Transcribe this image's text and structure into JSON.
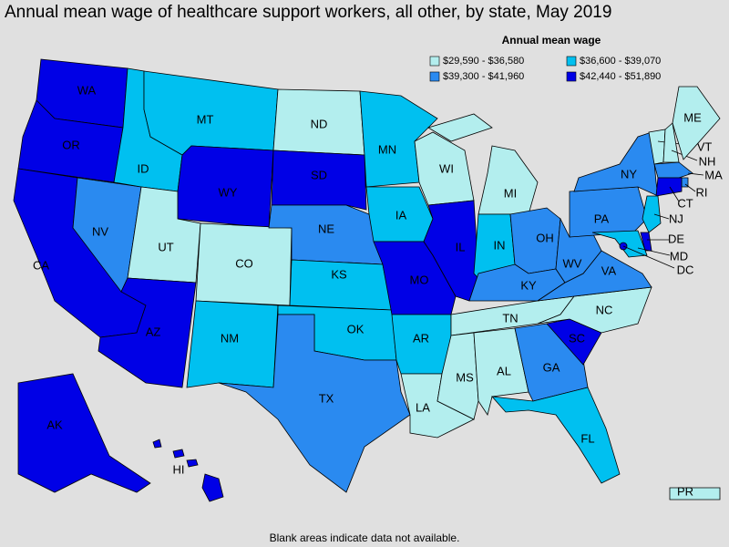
{
  "title": "Annual mean wage of healthcare support workers, all other, by state, May 2019",
  "legend": {
    "title": "Annual mean wage",
    "bins": [
      {
        "label": "$29,590 - $36,580",
        "color": "#b3eeee"
      },
      {
        "label": "$36,600 - $39,070",
        "color": "#00c0f0"
      },
      {
        "label": "$39,300 - $41,960",
        "color": "#2a8af0"
      },
      {
        "label": "$42,440 - $51,890",
        "color": "#0000e6"
      }
    ]
  },
  "states": [
    {
      "label": "WA",
      "bin": 3
    },
    {
      "label": "OR",
      "bin": 3
    },
    {
      "label": "CA",
      "bin": 3
    },
    {
      "label": "NV",
      "bin": 2
    },
    {
      "label": "ID",
      "bin": 1
    },
    {
      "label": "MT",
      "bin": 1
    },
    {
      "label": "WY",
      "bin": 3
    },
    {
      "label": "UT",
      "bin": 0
    },
    {
      "label": "CO",
      "bin": 0
    },
    {
      "label": "AZ",
      "bin": 3
    },
    {
      "label": "NM",
      "bin": 1
    },
    {
      "label": "ND",
      "bin": 0
    },
    {
      "label": "SD",
      "bin": 3
    },
    {
      "label": "NE",
      "bin": 2
    },
    {
      "label": "KS",
      "bin": 1
    },
    {
      "label": "OK",
      "bin": 1
    },
    {
      "label": "TX",
      "bin": 2
    },
    {
      "label": "MN",
      "bin": 1
    },
    {
      "label": "IA",
      "bin": 1
    },
    {
      "label": "MO",
      "bin": 3
    },
    {
      "label": "AR",
      "bin": 1
    },
    {
      "label": "LA",
      "bin": 0
    },
    {
      "label": "WI",
      "bin": 0
    },
    {
      "label": "IL",
      "bin": 3
    },
    {
      "label": "MI",
      "bin": 0
    },
    {
      "label": "IN",
      "bin": 1
    },
    {
      "label": "OH",
      "bin": 2
    },
    {
      "label": "KY",
      "bin": 2
    },
    {
      "label": "TN",
      "bin": 0
    },
    {
      "label": "MS",
      "bin": 0
    },
    {
      "label": "AL",
      "bin": 0
    },
    {
      "label": "GA",
      "bin": 2
    },
    {
      "label": "FL",
      "bin": 1
    },
    {
      "label": "SC",
      "bin": 3
    },
    {
      "label": "NC",
      "bin": 0
    },
    {
      "label": "VA",
      "bin": 2
    },
    {
      "label": "WV",
      "bin": 2
    },
    {
      "label": "PA",
      "bin": 2
    },
    {
      "label": "NY",
      "bin": 2
    },
    {
      "label": "VT",
      "bin": 0
    },
    {
      "label": "NH",
      "bin": 0
    },
    {
      "label": "ME",
      "bin": 0
    },
    {
      "label": "MA",
      "bin": 2
    },
    {
      "label": "RI",
      "bin": 2
    },
    {
      "label": "CT",
      "bin": 3
    },
    {
      "label": "NJ",
      "bin": 1
    },
    {
      "label": "DE",
      "bin": 3
    },
    {
      "label": "MD",
      "bin": 1
    },
    {
      "label": "DC",
      "bin": 3
    },
    {
      "label": "AK",
      "bin": 3
    },
    {
      "label": "HI",
      "bin": 3
    },
    {
      "label": "PR",
      "bin": 0
    }
  ],
  "note": "Blank areas indicate data not available."
}
